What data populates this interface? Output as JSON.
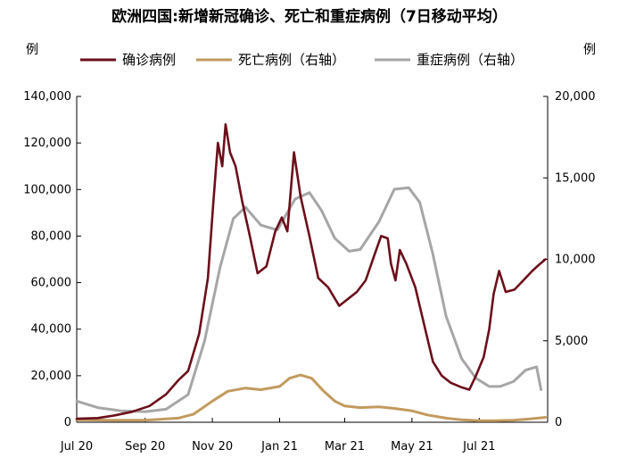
{
  "chart_data": {
    "type": "line",
    "title": "欧洲四国:新增新冠确诊、死亡和重症病例（7日移动平均）",
    "left_unit": "例",
    "right_unit": "例",
    "legend_position": "top",
    "grid": false,
    "x_axis": {
      "range": [
        "2020-07-01",
        "2021-09-01"
      ],
      "tick_labels": [
        "Jul 20",
        "Sep 20",
        "Nov 20",
        "Jan 21",
        "Mar 21",
        "May 21",
        "Jul 21"
      ],
      "tick_dates": [
        "2020-07-01",
        "2020-09-01",
        "2020-11-01",
        "2021-01-01",
        "2021-03-01",
        "2021-05-01",
        "2021-07-01"
      ]
    },
    "y_left": {
      "range": [
        0,
        140000
      ],
      "ticks": [
        0,
        20000,
        40000,
        60000,
        80000,
        100000,
        120000,
        140000
      ],
      "tick_labels": [
        "0",
        "20,000",
        "40,000",
        "60,000",
        "80,000",
        "100,000",
        "120,000",
        "140,000"
      ]
    },
    "y_right": {
      "range": [
        0,
        20000
      ],
      "ticks": [
        0,
        5000,
        10000,
        15000,
        20000
      ],
      "tick_labels": [
        "0",
        "5,000",
        "10,000",
        "15,000",
        "20,000"
      ]
    },
    "series": [
      {
        "name": "确诊病例",
        "axis": "left",
        "color": "#6b0f1a",
        "x": [
          "2020-07-01",
          "2020-07-20",
          "2020-08-05",
          "2020-08-20",
          "2020-09-05",
          "2020-09-20",
          "2020-10-01",
          "2020-10-10",
          "2020-10-20",
          "2020-10-28",
          "2020-11-02",
          "2020-11-06",
          "2020-11-10",
          "2020-11-13",
          "2020-11-17",
          "2020-11-22",
          "2020-11-28",
          "2020-12-05",
          "2020-12-12",
          "2020-12-20",
          "2020-12-28",
          "2021-01-03",
          "2021-01-08",
          "2021-01-14",
          "2021-01-20",
          "2021-01-28",
          "2021-02-05",
          "2021-02-14",
          "2021-02-24",
          "2021-03-04",
          "2021-03-12",
          "2021-03-20",
          "2021-03-28",
          "2021-04-03",
          "2021-04-09",
          "2021-04-12",
          "2021-04-16",
          "2021-04-20",
          "2021-04-26",
          "2021-05-04",
          "2021-05-12",
          "2021-05-20",
          "2021-05-28",
          "2021-06-05",
          "2021-06-15",
          "2021-06-22",
          "2021-06-28",
          "2021-07-05",
          "2021-07-10",
          "2021-07-14",
          "2021-07-19",
          "2021-07-25",
          "2021-08-02",
          "2021-08-10",
          "2021-08-18",
          "2021-08-25",
          "2021-08-30"
        ],
        "values": [
          1500,
          1800,
          3000,
          4500,
          7000,
          12000,
          18000,
          22000,
          38000,
          62000,
          95000,
          120000,
          110000,
          128000,
          116000,
          110000,
          95000,
          80000,
          64000,
          67000,
          82000,
          88000,
          82000,
          116000,
          97000,
          80000,
          62000,
          58000,
          50000,
          53000,
          56000,
          61000,
          72000,
          80000,
          79000,
          68000,
          61000,
          74000,
          68000,
          58000,
          42000,
          26000,
          20000,
          17000,
          15000,
          14000,
          20000,
          28000,
          40000,
          55000,
          65000,
          56000,
          57000,
          61000,
          65000,
          68000,
          70000
        ]
      },
      {
        "name": "死亡病例（右轴）",
        "axis": "right",
        "color": "#c29a5e",
        "x": [
          "2020-07-01",
          "2020-08-01",
          "2020-09-01",
          "2020-10-01",
          "2020-10-15",
          "2020-11-01",
          "2020-11-15",
          "2020-12-01",
          "2020-12-15",
          "2021-01-01",
          "2021-01-10",
          "2021-01-20",
          "2021-01-30",
          "2021-02-10",
          "2021-02-20",
          "2021-03-01",
          "2021-03-15",
          "2021-04-01",
          "2021-04-15",
          "2021-05-01",
          "2021-05-15",
          "2021-06-01",
          "2021-06-15",
          "2021-07-01",
          "2021-07-15",
          "2021-08-01",
          "2021-08-15",
          "2021-08-30"
        ],
        "values": [
          150,
          120,
          120,
          250,
          500,
          1300,
          1900,
          2100,
          2000,
          2200,
          2700,
          2900,
          2700,
          1900,
          1300,
          1000,
          900,
          950,
          850,
          700,
          450,
          250,
          150,
          100,
          100,
          120,
          200,
          300
        ]
      },
      {
        "name": "重症病例（右轴）",
        "axis": "right",
        "color": "#a6a6a6",
        "x": [
          "2020-07-01",
          "2020-07-20",
          "2020-08-10",
          "2020-09-01",
          "2020-09-20",
          "2020-10-10",
          "2020-10-25",
          "2020-11-08",
          "2020-11-20",
          "2020-12-01",
          "2020-12-15",
          "2020-12-30",
          "2021-01-15",
          "2021-01-28",
          "2021-02-08",
          "2021-02-20",
          "2021-03-05",
          "2021-03-15",
          "2021-04-01",
          "2021-04-15",
          "2021-04-28",
          "2021-05-08",
          "2021-05-20",
          "2021-06-01",
          "2021-06-15",
          "2021-06-28",
          "2021-07-10",
          "2021-07-20",
          "2021-08-01",
          "2021-08-12",
          "2021-08-22",
          "2021-08-26"
        ],
        "values": [
          1300,
          900,
          700,
          650,
          800,
          1700,
          5000,
          9500,
          12500,
          13200,
          12100,
          11800,
          13700,
          14100,
          13000,
          11300,
          10500,
          10600,
          12300,
          14300,
          14400,
          13500,
          10300,
          6500,
          3900,
          2700,
          2200,
          2200,
          2500,
          3200,
          3400,
          2000
        ]
      }
    ]
  }
}
